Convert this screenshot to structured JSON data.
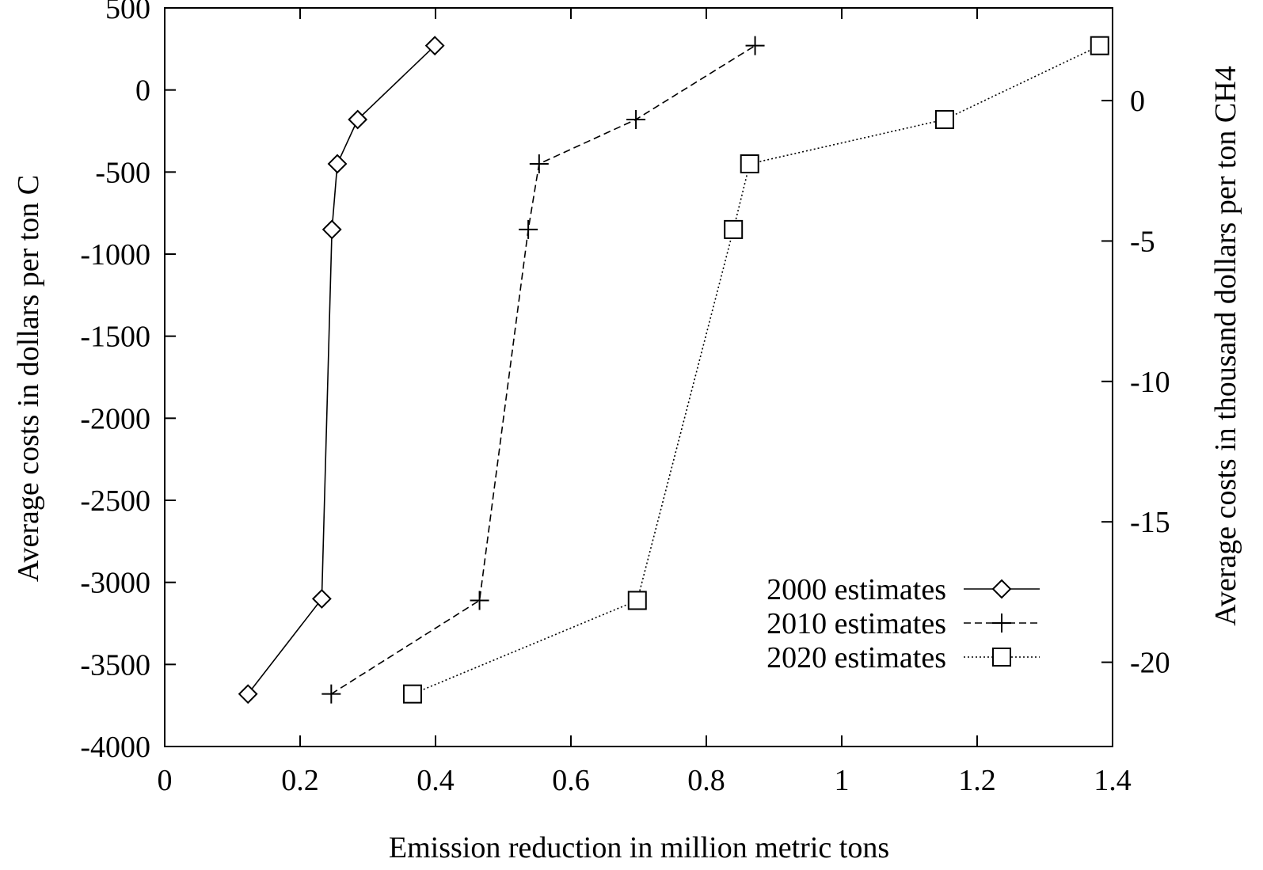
{
  "chart_data": {
    "type": "line",
    "title": "",
    "xlabel": "Emission reduction in million metric tons",
    "ylabel": "Average costs in dollars per ton C",
    "y2label": "Average costs in thousand dollars per ton CH4",
    "xlim": [
      0,
      1.4
    ],
    "ylim": [
      -4000,
      500
    ],
    "y2lim": [
      -23,
      3.3
    ],
    "xticks": [
      0,
      0.2,
      0.4,
      0.6,
      0.8,
      1,
      1.2,
      1.4
    ],
    "xtick_labels": [
      "0",
      "0.2",
      "0.4",
      "0.6",
      "0.8",
      "1",
      "1.2",
      "1.4"
    ],
    "yticks": [
      -4000,
      -3500,
      -3000,
      -2500,
      -2000,
      -1500,
      -1000,
      -500,
      0,
      500
    ],
    "ytick_labels": [
      "-4000",
      "-3500",
      "-3000",
      "-2500",
      "-2000",
      "-1500",
      "-1000",
      "-500",
      "0",
      "500"
    ],
    "y2ticks": [
      -20,
      -15,
      -10,
      -5,
      0
    ],
    "y2tick_labels": [
      "-20",
      "-15",
      "-10",
      "-5",
      "0"
    ],
    "grid": false,
    "legend_position": "bottom-right",
    "series": [
      {
        "name": "2000 estimates",
        "line_style": "solid",
        "marker": "diamond",
        "x": [
          0.123,
          0.232,
          0.247,
          0.255,
          0.285,
          0.399
        ],
        "y": [
          -3680,
          -3100,
          -850,
          -450,
          -180,
          270
        ]
      },
      {
        "name": "2010 estimates",
        "line_style": "dashed",
        "marker": "plus",
        "x": [
          0.246,
          0.465,
          0.537,
          0.553,
          0.696,
          0.872
        ],
        "y": [
          -3680,
          -3110,
          -850,
          -450,
          -180,
          270
        ]
      },
      {
        "name": "2020 estimates",
        "line_style": "dotted",
        "marker": "square",
        "x": [
          0.366,
          0.698,
          0.84,
          0.864,
          1.152,
          1.381
        ],
        "y": [
          -3680,
          -3110,
          -850,
          -450,
          -180,
          270
        ]
      }
    ]
  }
}
